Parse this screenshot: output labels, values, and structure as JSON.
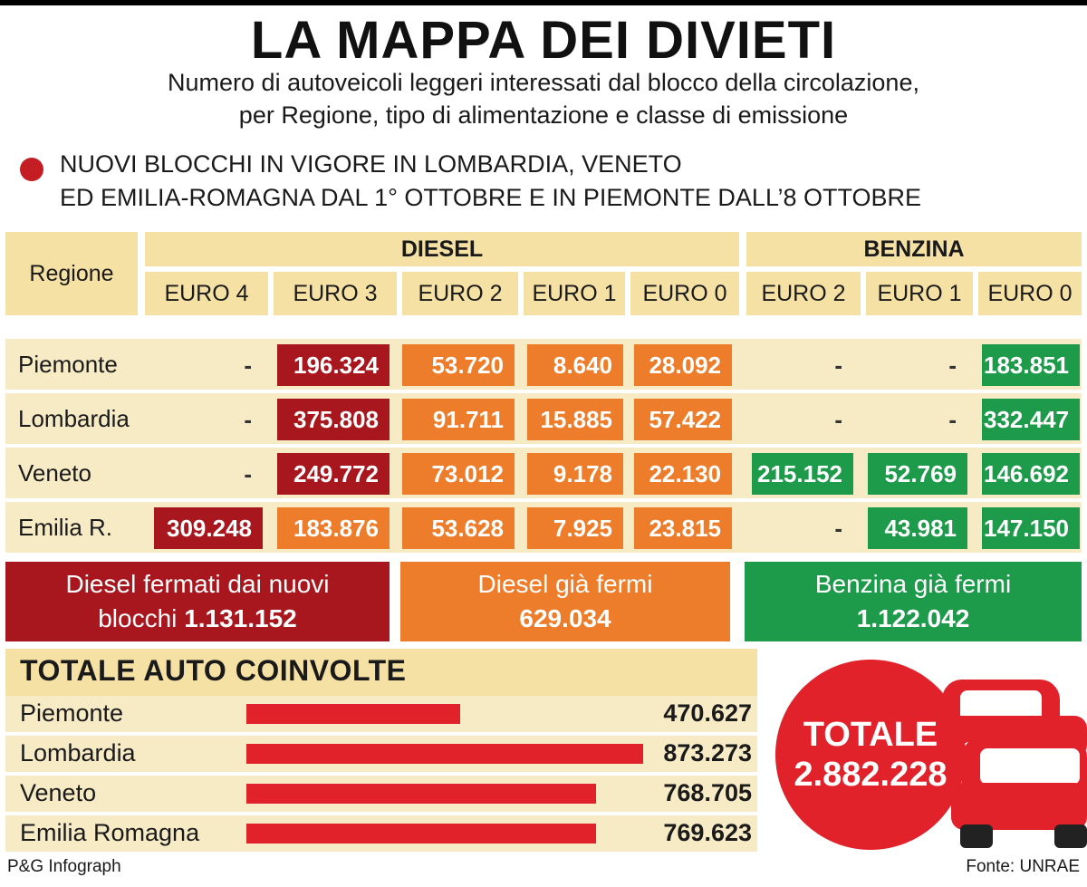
{
  "title": "LA MAPPA DEI DIVIETI",
  "subtitle_lines": [
    "Numero di autoveicoli leggeri interessati dal blocco della circolazione,",
    "per Regione, tipo di alimentazione e classe di emissione"
  ],
  "note_lines": [
    "NUOVI BLOCCHI IN VIGORE IN LOMBARDIA, VENETO",
    "ED EMILIA-ROMAGNA DAL 1° OTTOBRE E IN PIEMONTE DALL’8 OTTOBRE"
  ],
  "table": {
    "region_header": "Regione",
    "groups": [
      "DIESEL",
      "BENZINA"
    ],
    "columns": [
      "EURO 4",
      "EURO 3",
      "EURO 2",
      "EURO 1",
      "EURO 0",
      "EURO 2",
      "EURO 1",
      "EURO 0"
    ],
    "rows": [
      {
        "region": "Piemonte",
        "cells": [
          "-",
          "196.324",
          "53.720",
          "8.640",
          "28.092",
          "-",
          "-",
          "183.851"
        ]
      },
      {
        "region": "Lombardia",
        "cells": [
          "-",
          "375.808",
          "91.711",
          "15.885",
          "57.422",
          "-",
          "-",
          "332.447"
        ]
      },
      {
        "region": "Veneto",
        "cells": [
          "-",
          "249.772",
          "73.012",
          "9.178",
          "22.130",
          "215.152",
          "52.769",
          "146.692"
        ]
      },
      {
        "region": "Emilia R.",
        "cells": [
          "309.248",
          "183.876",
          "53.628",
          "7.925",
          "23.815",
          "-",
          "43.981",
          "147.150"
        ]
      }
    ],
    "colors": {
      "new_block": "#a8171d",
      "diesel_stopped": "#ee7d2b",
      "petrol_stopped": "#1e9a4b",
      "header": "#f6e1a4"
    }
  },
  "summaries": {
    "diesel_new": {
      "label": "Diesel fermati dai nuovi",
      "label2": "blocchi",
      "value": "1.131.152"
    },
    "diesel_stopped": {
      "label": "Diesel già fermi",
      "value": "629.034"
    },
    "petrol_stopped": {
      "label": "Benzina già fermi",
      "value": "1.122.042"
    }
  },
  "chart_data": {
    "type": "bar",
    "title": "TOTALE AUTO COINVOLTE",
    "orientation": "horizontal",
    "categories": [
      "Piemonte",
      "Lombardia",
      "Veneto",
      "Emilia Romagna"
    ],
    "values": [
      470627,
      873273,
      768705,
      769623
    ],
    "value_labels": [
      "470.627",
      "873.273",
      "768.705",
      "769.623"
    ],
    "xlim": [
      0,
      873273
    ],
    "bar_color": "#e2222b",
    "grid": false
  },
  "total": {
    "label": "TOTALE",
    "value": "2.882.228"
  },
  "footer": {
    "left": "P&G Infograph",
    "right": "Fonte: UNRAE"
  }
}
